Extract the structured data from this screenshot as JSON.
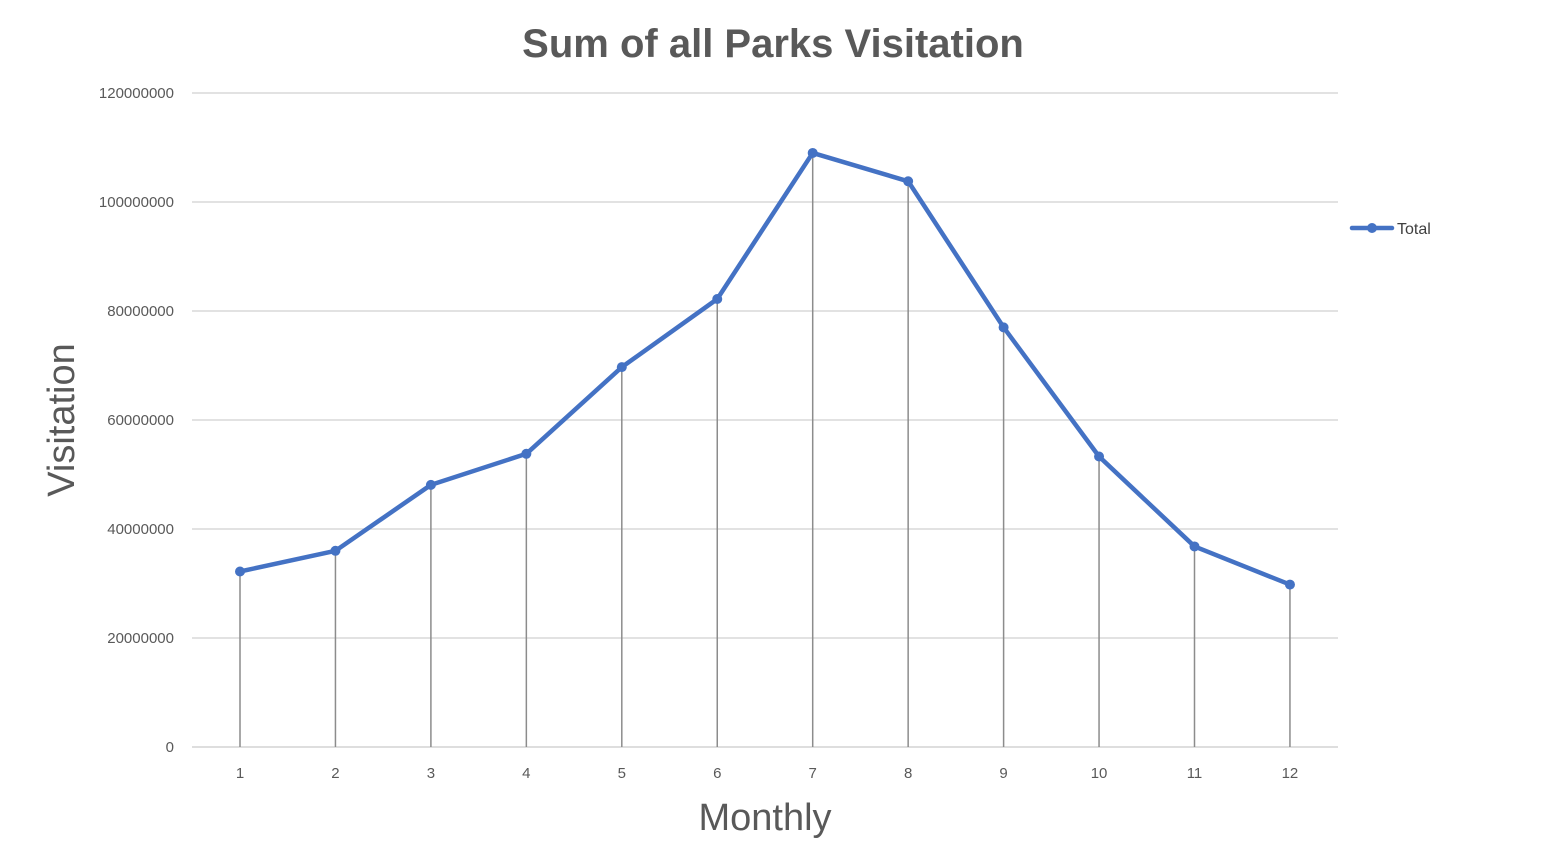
{
  "chart_data": {
    "type": "line",
    "title": "Sum of all Parks Visitation",
    "xlabel": "Monthly",
    "ylabel": "Visitation",
    "categories": [
      "1",
      "2",
      "3",
      "4",
      "5",
      "6",
      "7",
      "8",
      "9",
      "10",
      "11",
      "12"
    ],
    "series": [
      {
        "name": "Total",
        "color": "#4472c4",
        "values": [
          32200000,
          36000000,
          48100000,
          53800000,
          69700000,
          82200000,
          109000000,
          103800000,
          77000000,
          53300000,
          36800000,
          29800000
        ]
      }
    ],
    "ylim": [
      0,
      120000000
    ],
    "yticks": [
      "0",
      "20000000",
      "40000000",
      "60000000",
      "80000000",
      "100000000",
      "120000000"
    ],
    "grid": true,
    "drop_lines": true,
    "legend_position": "right"
  }
}
